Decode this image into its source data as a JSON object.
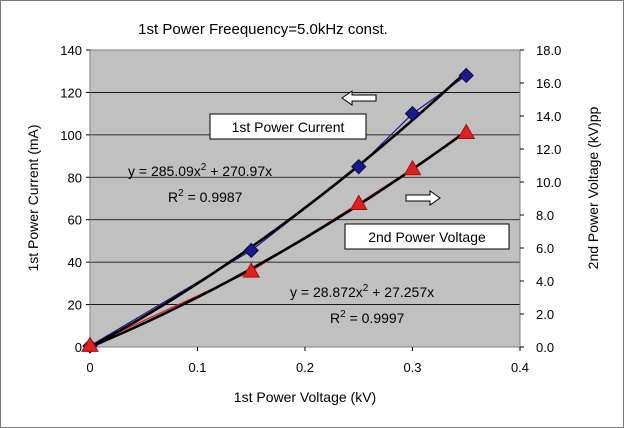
{
  "chart_data": {
    "type": "scatter",
    "title": "1st Power Freequency=5.0kHz const.",
    "xlabel": "1st Power Voltage (kV)",
    "ylabel": "1st Power Current (mA)",
    "y2label": "2nd Power Voltage (kV)pp",
    "xlim": [
      0,
      0.4
    ],
    "ylim": [
      0,
      140
    ],
    "y2lim": [
      0,
      18
    ],
    "xticks": [
      "0",
      "0.1",
      "0.2",
      "0.3",
      "0.4"
    ],
    "yticks": [
      "0",
      "20",
      "40",
      "60",
      "80",
      "100",
      "120",
      "140"
    ],
    "y2ticks": [
      "0.0",
      "2.0",
      "4.0",
      "6.0",
      "8.0",
      "10.0",
      "12.0",
      "14.0",
      "16.0",
      "18.0"
    ],
    "grid": "horizontal",
    "plot_background": "#c0c0c0",
    "series": [
      {
        "name": "1st Power Current",
        "axis": "left",
        "marker": "diamond",
        "color": "#1a1a8c",
        "x": [
          0,
          0.15,
          0.25,
          0.3,
          0.35
        ],
        "values": [
          0.5,
          45.5,
          85,
          110,
          128
        ]
      },
      {
        "name": "2nd Power Voltage",
        "axis": "right",
        "marker": "triangle",
        "color": "#e02020",
        "x": [
          0,
          0.15,
          0.25,
          0.3,
          0.35
        ],
        "values": [
          0.1,
          4.6,
          8.7,
          10.8,
          13.0
        ]
      }
    ],
    "trendlines": [
      {
        "series": "1st Power Current",
        "axis": "left",
        "color": "#000000",
        "a": 285.09,
        "b": 270.97,
        "x_range": [
          0,
          0.35
        ],
        "equation_base": "y = 285.09x",
        "equation_exp": "2",
        "equation_tail": " + 270.97x",
        "r2_base": "R",
        "r2_exp": "2",
        "r2_tail": " = 0.9987"
      },
      {
        "series": "2nd Power Voltage",
        "axis": "right",
        "color": "#000000",
        "a": 28.872,
        "b": 27.257,
        "x_range": [
          0,
          0.35
        ],
        "equation_base": "y = 28.872x",
        "equation_exp": "2",
        "equation_tail": " + 27.257x",
        "r2_base": "R",
        "r2_exp": "2",
        "r2_tail": " = 0.9997"
      }
    ],
    "annotations": [
      {
        "text": "1st Power Current",
        "arrow": "left"
      },
      {
        "text": "2nd Power Voltage",
        "arrow": "right"
      }
    ]
  }
}
